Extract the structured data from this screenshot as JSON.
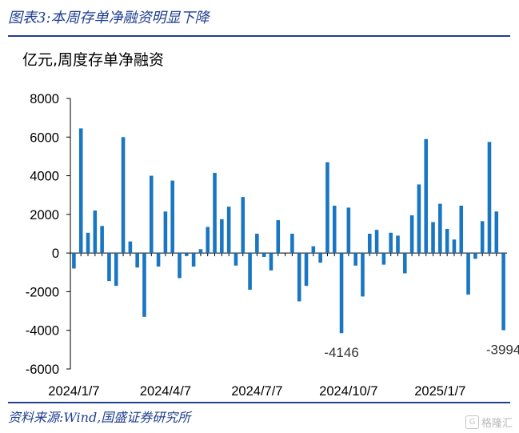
{
  "header": {
    "title": "图表3:本周存单净融资明显下降"
  },
  "footer": {
    "source": "资料来源:Wind,国盛证券研究所",
    "watermark": "格隆汇"
  },
  "chart_data": {
    "type": "bar",
    "title": "",
    "unit_label": "亿元,周度存单净融资",
    "xlabel": "",
    "ylabel": "亿元",
    "ylim": [
      -6000,
      8000
    ],
    "yticks": [
      8000,
      6000,
      4000,
      2000,
      0,
      -2000,
      -4000,
      -6000
    ],
    "xtick_labels": [
      "2024/1/7",
      "2024/4/7",
      "2024/7/7",
      "2024/10/7",
      "2025/1/7"
    ],
    "xtick_index": [
      0,
      13,
      26,
      39,
      52
    ],
    "color": "#1976c2",
    "grid": false,
    "legend": "none",
    "values": [
      -800,
      6450,
      1050,
      2200,
      1400,
      -1450,
      -1700,
      6000,
      600,
      -750,
      -3300,
      4000,
      -700,
      2150,
      3750,
      -1300,
      -150,
      -700,
      200,
      1350,
      4150,
      1750,
      2400,
      -650,
      2900,
      -1900,
      1000,
      -200,
      -900,
      1700,
      0,
      1000,
      -2500,
      -1700,
      350,
      -500,
      4700,
      2450,
      -4146,
      2350,
      -650,
      -2250,
      1000,
      1200,
      -600,
      1050,
      900,
      -1050,
      1950,
      3550,
      5900,
      1600,
      2550,
      1250,
      700,
      2450,
      -2150,
      -300,
      1650,
      5750,
      2150,
      -3994
    ],
    "annotations": [
      {
        "text": "-4146",
        "index": 38,
        "value": -4146
      },
      {
        "text": "-3994",
        "index": 61,
        "value": -3994
      }
    ]
  }
}
